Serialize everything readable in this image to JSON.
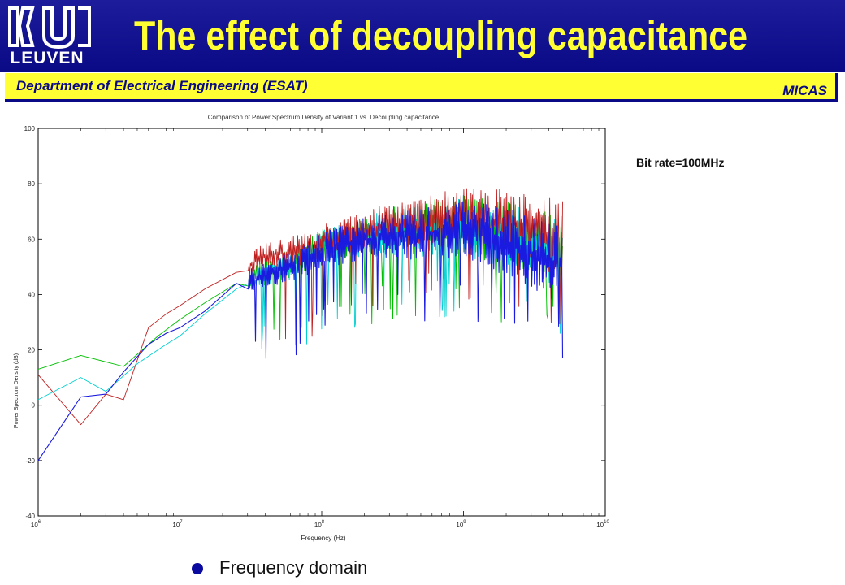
{
  "header": {
    "logo_text": "LEUVEN",
    "title": "The effect of decoupling capacitance",
    "department": "Department of Electrical Engineering (ESAT)",
    "group": "MICAS"
  },
  "note": "Bit rate=100MHz",
  "bullet": "Frequency domain",
  "colors": {
    "header_bg": "#0a0a86",
    "title_yellow": "#ffff33"
  },
  "chart_data": {
    "type": "line",
    "title": "Comparison of Power Spectrum Density of Variant 1 vs. Decoupling capacitance",
    "xlabel": "Frequency (Hz)",
    "ylabel": "Power Spectrum Density (dB)",
    "xscale": "log",
    "xlim": [
      1000000,
      10000000000
    ],
    "ylim": [
      -40,
      100
    ],
    "xticks": [
      {
        "value": 1000000,
        "base": "10",
        "exp": "6"
      },
      {
        "value": 10000000,
        "base": "10",
        "exp": "7"
      },
      {
        "value": 100000000,
        "base": "10",
        "exp": "8"
      },
      {
        "value": 1000000000,
        "base": "10",
        "exp": "9"
      },
      {
        "value": 10000000000,
        "base": "10",
        "exp": "10"
      }
    ],
    "yticks": [
      -40,
      -20,
      0,
      20,
      40,
      60,
      80,
      100
    ],
    "grid": false,
    "series": [
      {
        "color": "#00c000",
        "x": [
          1000000,
          2000000,
          4000000,
          7000000,
          10000000,
          15000000,
          25000000,
          40000000,
          70000000,
          100000000,
          200000000,
          500000000,
          1000000000,
          2000000000,
          5000000000
        ],
        "y": [
          13,
          18,
          14,
          25,
          31,
          37,
          44,
          48,
          53,
          58,
          62,
          64,
          66,
          62,
          56
        ]
      },
      {
        "color": "#00d0d0",
        "x": [
          1000000,
          2000000,
          3000000,
          5000000,
          8000000,
          10000000,
          15000000,
          25000000,
          40000000,
          70000000,
          100000000,
          200000000,
          500000000,
          1000000000,
          2000000000,
          5000000000
        ],
        "y": [
          2,
          10,
          5,
          15,
          22,
          25,
          33,
          42,
          47,
          52,
          57,
          61,
          63,
          65,
          60,
          55
        ]
      },
      {
        "color": "#c02020",
        "x": [
          1000000,
          2000000,
          3000000,
          4000000,
          6000000,
          8000000,
          10000000,
          15000000,
          25000000,
          40000000,
          70000000,
          100000000,
          200000000,
          500000000,
          1000000000,
          2000000000,
          5000000000
        ],
        "y": [
          11,
          -7,
          4,
          2,
          28,
          33,
          36,
          42,
          48,
          54,
          56,
          59,
          63,
          66,
          68,
          66,
          60
        ]
      },
      {
        "color": "#1a1ae0",
        "x": [
          1000000,
          2000000,
          3000000,
          4000000,
          6000000,
          8000000,
          10000000,
          15000000,
          25000000,
          40000000,
          70000000,
          100000000,
          200000000,
          500000000,
          1000000000,
          2000000000,
          5000000000
        ],
        "y": [
          -20,
          3,
          4,
          12,
          22,
          26,
          28,
          34,
          44,
          47,
          51,
          56,
          60,
          62,
          64,
          59,
          50
        ]
      }
    ]
  }
}
